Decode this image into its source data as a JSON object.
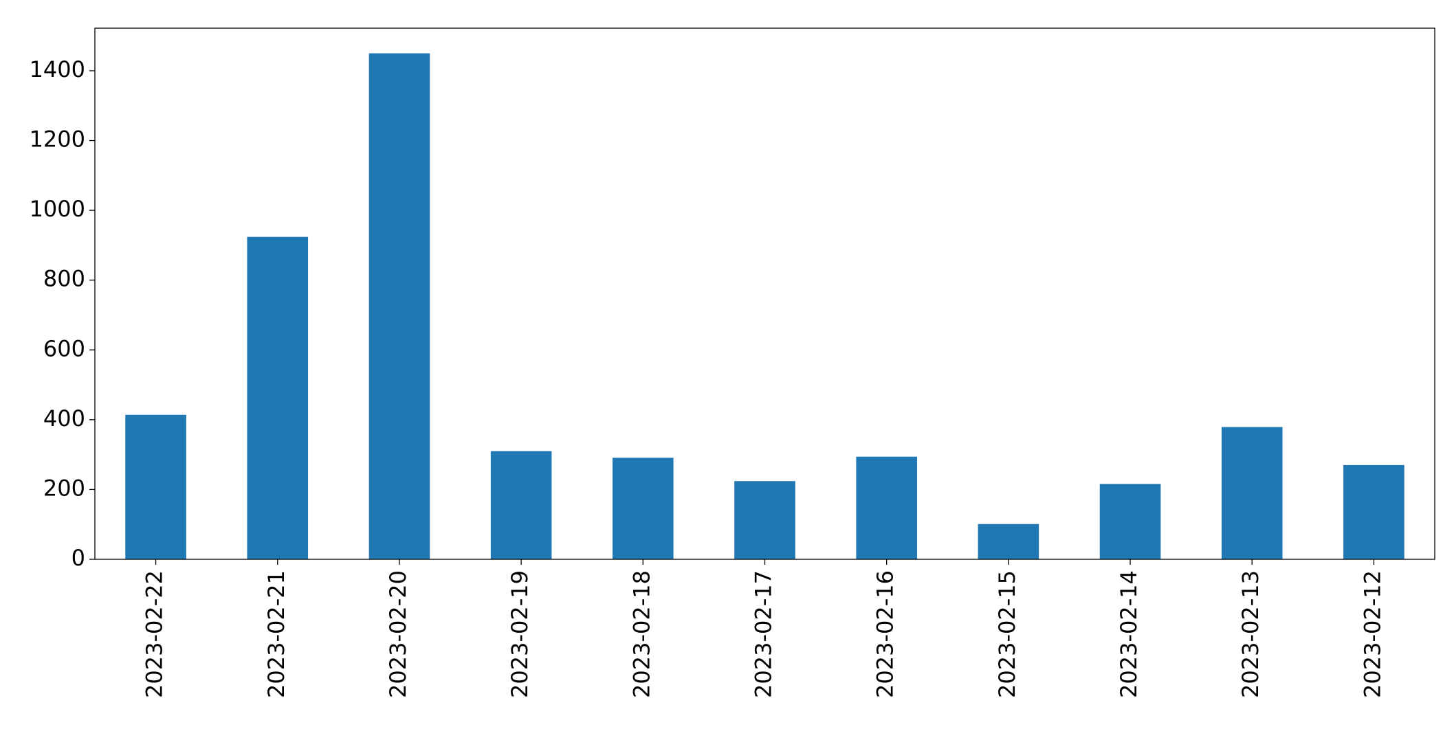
{
  "chart_data": {
    "type": "bar",
    "categories": [
      "2023-02-22",
      "2023-02-21",
      "2023-02-20",
      "2023-02-19",
      "2023-02-18",
      "2023-02-17",
      "2023-02-16",
      "2023-02-15",
      "2023-02-14",
      "2023-02-13",
      "2023-02-12"
    ],
    "values": [
      414,
      924,
      1450,
      310,
      291,
      224,
      294,
      101,
      216,
      379,
      270
    ],
    "color": "#1f77b4",
    "ylim": [
      0,
      1522
    ],
    "yticks": [
      0,
      200,
      400,
      600,
      800,
      1000,
      1200,
      1400
    ],
    "grid": false
  }
}
